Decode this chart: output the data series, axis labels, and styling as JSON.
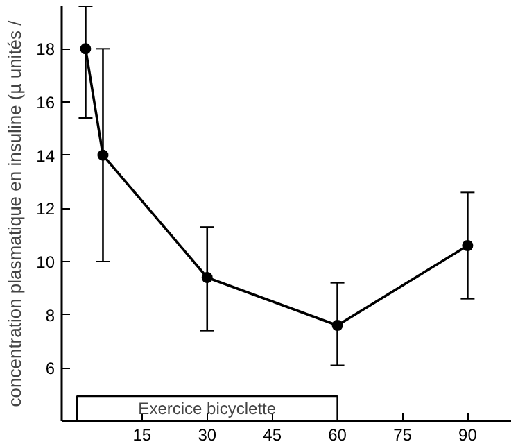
{
  "chart_data": {
    "type": "line",
    "ylabel": "concentration plasmatique en insuline (µ unités /",
    "x": [
      2,
      6,
      30,
      60,
      90
    ],
    "series": [
      {
        "color": "#000000",
        "values": [
          18,
          14,
          9.4,
          7.6,
          10.6
        ],
        "errors": [
          [
            15.4,
            19.6
          ],
          [
            10,
            18
          ],
          [
            7.4,
            11.3
          ],
          [
            6.1,
            9.2
          ],
          [
            8.6,
            12.6
          ]
        ]
      }
    ],
    "xlim": [
      -3.5,
      100
    ],
    "xticks": [
      15,
      30,
      45,
      60,
      75,
      90
    ],
    "ylim": [
      4,
      19.6
    ],
    "yticks": [
      6,
      8,
      10,
      12,
      14,
      16,
      18
    ],
    "bands": [
      {
        "axis": "x",
        "from": 0,
        "to": 60,
        "label": "Exercice bicyclette"
      }
    ],
    "grid": false,
    "marker": "circle",
    "line_style": "solid"
  }
}
